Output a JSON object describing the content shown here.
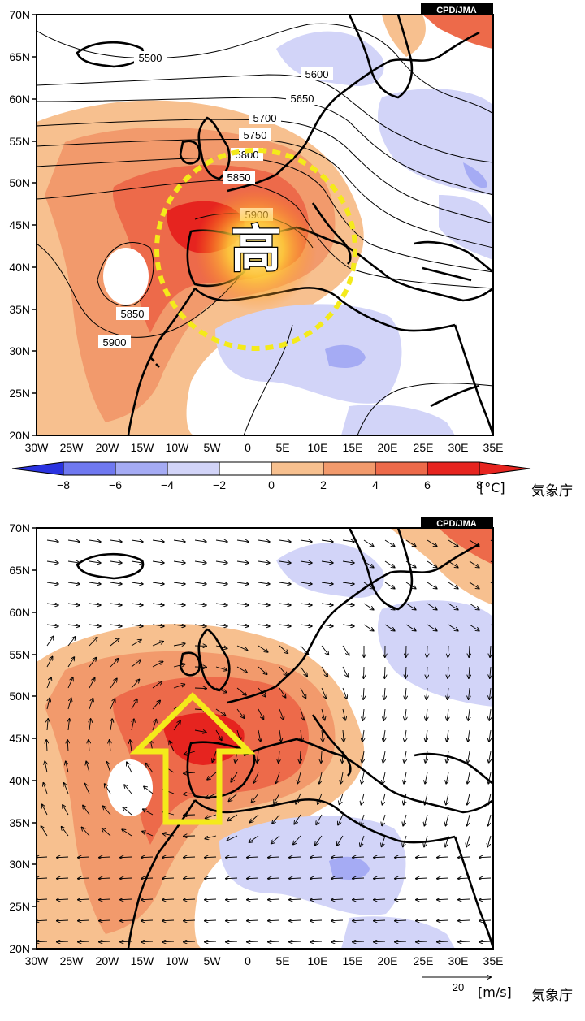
{
  "maps": [
    {
      "credit": "CPD/JMA",
      "lat_labels": [
        "70N",
        "65N",
        "60N",
        "55N",
        "50N",
        "45N",
        "40N",
        "35N",
        "30N",
        "25N",
        "20N"
      ],
      "lon_labels": [
        "30W",
        "25W",
        "20W",
        "15W",
        "10W",
        "5W",
        "0",
        "5E",
        "10E",
        "15E",
        "20E",
        "25E",
        "30E",
        "35E"
      ],
      "contour_labels": [
        "5500",
        "5600",
        "5650",
        "5700",
        "5750",
        "5800",
        "5850",
        "5900",
        "5850",
        "5900"
      ],
      "high_marker": "高",
      "colorbar": {
        "ticks": [
          "−8",
          "−6",
          "−4",
          "−2",
          "0",
          "2",
          "4",
          "6",
          "8"
        ],
        "unit": "[°C]",
        "colors": [
          "#3b46e8",
          "#6f78f0",
          "#a5abf4",
          "#d2d4f8",
          "#ffffff",
          "#f7c08f",
          "#f29a6c",
          "#ed6a4a",
          "#e6241f"
        ]
      },
      "agency": "気象庁"
    },
    {
      "credit": "CPD/JMA",
      "lat_labels": [
        "70N",
        "65N",
        "60N",
        "55N",
        "50N",
        "45N",
        "40N",
        "35N",
        "30N",
        "25N",
        "20N"
      ],
      "lon_labels": [
        "30W",
        "25W",
        "20W",
        "15W",
        "10W",
        "5W",
        "0",
        "5E",
        "10E",
        "15E",
        "20E",
        "25E",
        "30E",
        "35E"
      ],
      "reference_vector": "20",
      "unit": "[m/s]",
      "agency": "気象庁"
    }
  ]
}
